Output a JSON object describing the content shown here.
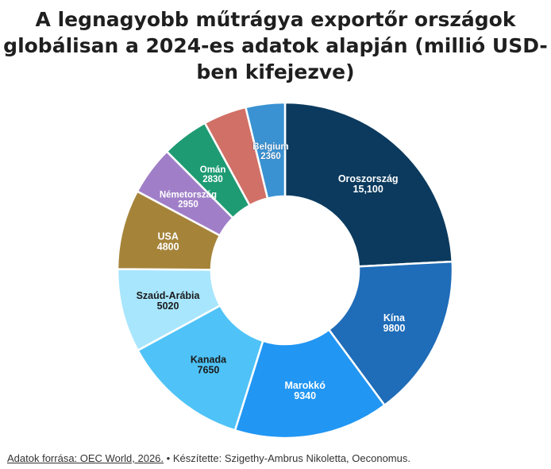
{
  "title_lines": [
    "A legnagyobb műtrágya exportőr országok",
    "globálisan a 2024-es adatok alapján (millió USD-",
    "ben kifejezve)"
  ],
  "footer": {
    "source": "Adatok forrása: OEC World, 2026.",
    "separator": "•",
    "credit": "Készítette: Szigethy-Ambrus Nikoletta, Oeconomus."
  },
  "chart_data": {
    "type": "pie",
    "variant": "donut",
    "title": "A legnagyobb műtrágya exportőr országok globálisan a 2024-es adatok alapján (millió USD-ben kifejezve)",
    "slices": [
      {
        "label": "Oroszország",
        "value": 15100,
        "value_label": "15,100",
        "color": "#0b3a5e",
        "text_color": "#ffffff"
      },
      {
        "label": "Kína",
        "value": 9800,
        "value_label": "9800",
        "color": "#1f6cb8",
        "text_color": "#ffffff"
      },
      {
        "label": "Marokkó",
        "value": 9340,
        "value_label": "9340",
        "color": "#2196f3",
        "text_color": "#ffffff"
      },
      {
        "label": "Kanada",
        "value": 7650,
        "value_label": "7650",
        "color": "#4fc3f7",
        "text_color": "#1a1a1a"
      },
      {
        "label": "Szaúd-Arábia",
        "value": 5020,
        "value_label": "5020",
        "color": "#a8e6fd",
        "text_color": "#1a1a1a"
      },
      {
        "label": "USA",
        "value": 4800,
        "value_label": "4800",
        "color": "#a5843a",
        "text_color": "#ffffff"
      },
      {
        "label": "Németország",
        "value": 2950,
        "value_label": "2950",
        "color": "#a07fc8",
        "text_color": "#ffffff"
      },
      {
        "label": "Omán",
        "value": 2830,
        "value_label": "2830",
        "color": "#1f9b74",
        "text_color": "#ffffff"
      },
      {
        "label": "",
        "value": 2600,
        "value_label": "",
        "color": "#d17067",
        "text_color": "#ffffff"
      },
      {
        "label": "Belgium",
        "value": 2360,
        "value_label": "2360",
        "color": "#3a92d2",
        "text_color": "#ffffff"
      }
    ]
  }
}
